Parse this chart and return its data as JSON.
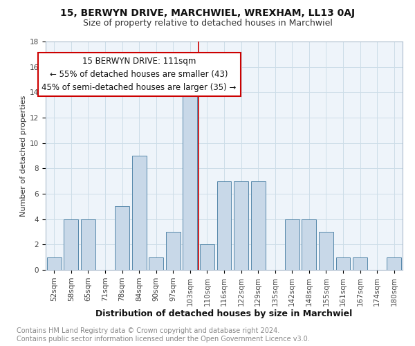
{
  "title": "15, BERWYN DRIVE, MARCHWIEL, WREXHAM, LL13 0AJ",
  "subtitle": "Size of property relative to detached houses in Marchwiel",
  "xlabel": "Distribution of detached houses by size in Marchwiel",
  "ylabel": "Number of detached properties",
  "footer_line1": "Contains HM Land Registry data © Crown copyright and database right 2024.",
  "footer_line2": "Contains public sector information licensed under the Open Government Licence v3.0.",
  "bar_labels": [
    "52sqm",
    "58sqm",
    "65sqm",
    "71sqm",
    "78sqm",
    "84sqm",
    "90sqm",
    "97sqm",
    "103sqm",
    "110sqm",
    "116sqm",
    "122sqm",
    "129sqm",
    "135sqm",
    "142sqm",
    "148sqm",
    "155sqm",
    "161sqm",
    "167sqm",
    "174sqm",
    "180sqm"
  ],
  "bar_values": [
    1,
    4,
    4,
    0,
    5,
    9,
    1,
    3,
    14,
    2,
    7,
    7,
    7,
    0,
    4,
    4,
    3,
    1,
    1,
    0,
    1
  ],
  "bar_color": "#c8d8e8",
  "bar_edge_color": "#5588aa",
  "vline_index": 8.5,
  "annotation_title": "15 BERWYN DRIVE: 111sqm",
  "annotation_line1": "← 55% of detached houses are smaller (43)",
  "annotation_line2": "45% of semi-detached houses are larger (35) →",
  "annotation_box_color": "#ffffff",
  "annotation_border_color": "#cc0000",
  "vline_color": "#cc0000",
  "ylim": [
    0,
    18
  ],
  "yticks": [
    0,
    2,
    4,
    6,
    8,
    10,
    12,
    14,
    16,
    18
  ],
  "grid_color": "#ccdde8",
  "bg_color": "#eef4fa",
  "title_fontsize": 10,
  "subtitle_fontsize": 9,
  "xlabel_fontsize": 9,
  "ylabel_fontsize": 8,
  "tick_fontsize": 7.5,
  "annotation_fontsize": 8.5,
  "footer_fontsize": 7
}
